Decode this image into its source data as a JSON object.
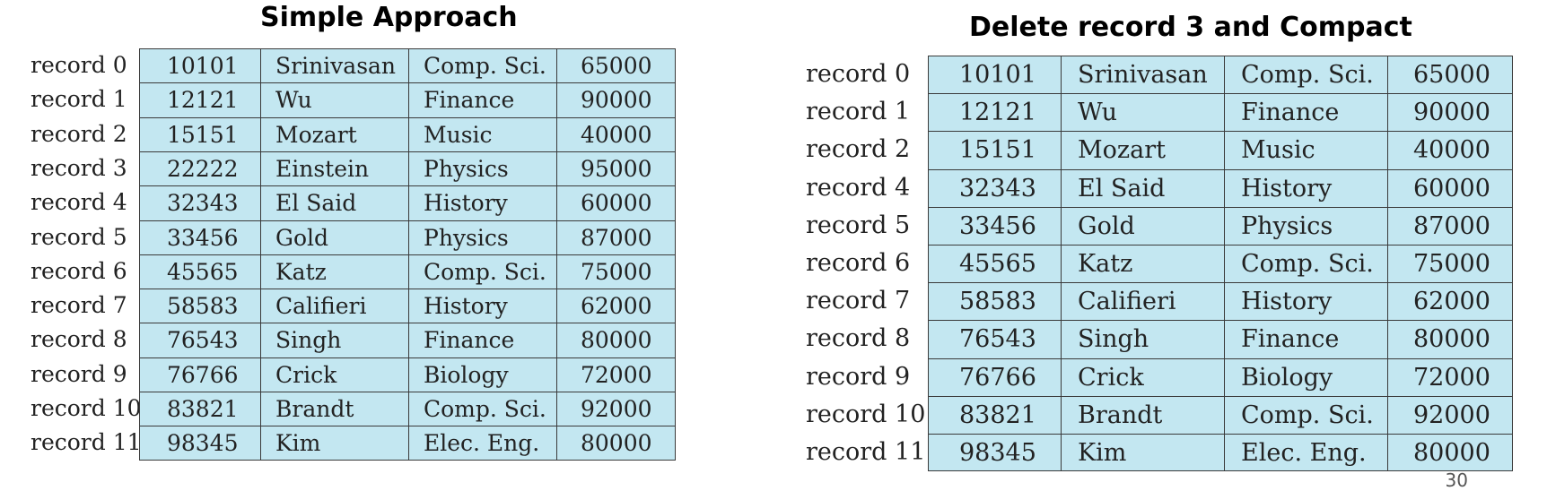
{
  "left": {
    "title": "Simple Approach",
    "rows": [
      {
        "label": "record 0",
        "id": "10101",
        "name": "Srinivasan",
        "dept": "Comp. Sci.",
        "salary": "65000"
      },
      {
        "label": "record 1",
        "id": "12121",
        "name": "Wu",
        "dept": "Finance",
        "salary": "90000"
      },
      {
        "label": "record 2",
        "id": "15151",
        "name": "Mozart",
        "dept": "Music",
        "salary": "40000"
      },
      {
        "label": "record 3",
        "id": "22222",
        "name": "Einstein",
        "dept": "Physics",
        "salary": "95000"
      },
      {
        "label": "record 4",
        "id": "32343",
        "name": "El Said",
        "dept": "History",
        "salary": "60000"
      },
      {
        "label": "record 5",
        "id": "33456",
        "name": "Gold",
        "dept": "Physics",
        "salary": "87000"
      },
      {
        "label": "record 6",
        "id": "45565",
        "name": "Katz",
        "dept": "Comp. Sci.",
        "salary": "75000"
      },
      {
        "label": "record 7",
        "id": "58583",
        "name": "Califieri",
        "dept": "History",
        "salary": "62000"
      },
      {
        "label": "record 8",
        "id": "76543",
        "name": "Singh",
        "dept": "Finance",
        "salary": "80000"
      },
      {
        "label": "record 9",
        "id": "76766",
        "name": "Crick",
        "dept": "Biology",
        "salary": "72000"
      },
      {
        "label": "record 10",
        "id": "83821",
        "name": "Brandt",
        "dept": "Comp. Sci.",
        "salary": "92000"
      },
      {
        "label": "record 11",
        "id": "98345",
        "name": "Kim",
        "dept": "Elec. Eng.",
        "salary": "80000"
      }
    ]
  },
  "right": {
    "title": "Delete record 3 and Compact",
    "rows": [
      {
        "label": "record 0",
        "id": "10101",
        "name": "Srinivasan",
        "dept": "Comp. Sci.",
        "salary": "65000"
      },
      {
        "label": "record 1",
        "id": "12121",
        "name": "Wu",
        "dept": "Finance",
        "salary": "90000"
      },
      {
        "label": "record 2",
        "id": "15151",
        "name": "Mozart",
        "dept": "Music",
        "salary": "40000"
      },
      {
        "label": "record 4",
        "id": "32343",
        "name": "El Said",
        "dept": "History",
        "salary": "60000"
      },
      {
        "label": "record 5",
        "id": "33456",
        "name": "Gold",
        "dept": "Physics",
        "salary": "87000"
      },
      {
        "label": "record 6",
        "id": "45565",
        "name": "Katz",
        "dept": "Comp. Sci.",
        "salary": "75000"
      },
      {
        "label": "record 7",
        "id": "58583",
        "name": "Califieri",
        "dept": "History",
        "salary": "62000"
      },
      {
        "label": "record 8",
        "id": "76543",
        "name": "Singh",
        "dept": "Finance",
        "salary": "80000"
      },
      {
        "label": "record 9",
        "id": "76766",
        "name": "Crick",
        "dept": "Biology",
        "salary": "72000"
      },
      {
        "label": "record 10",
        "id": "83821",
        "name": "Brandt",
        "dept": "Comp. Sci.",
        "salary": "92000"
      },
      {
        "label": "record 11",
        "id": "98345",
        "name": "Kim",
        "dept": "Elec. Eng.",
        "salary": "80000"
      }
    ]
  },
  "page_number": "30"
}
